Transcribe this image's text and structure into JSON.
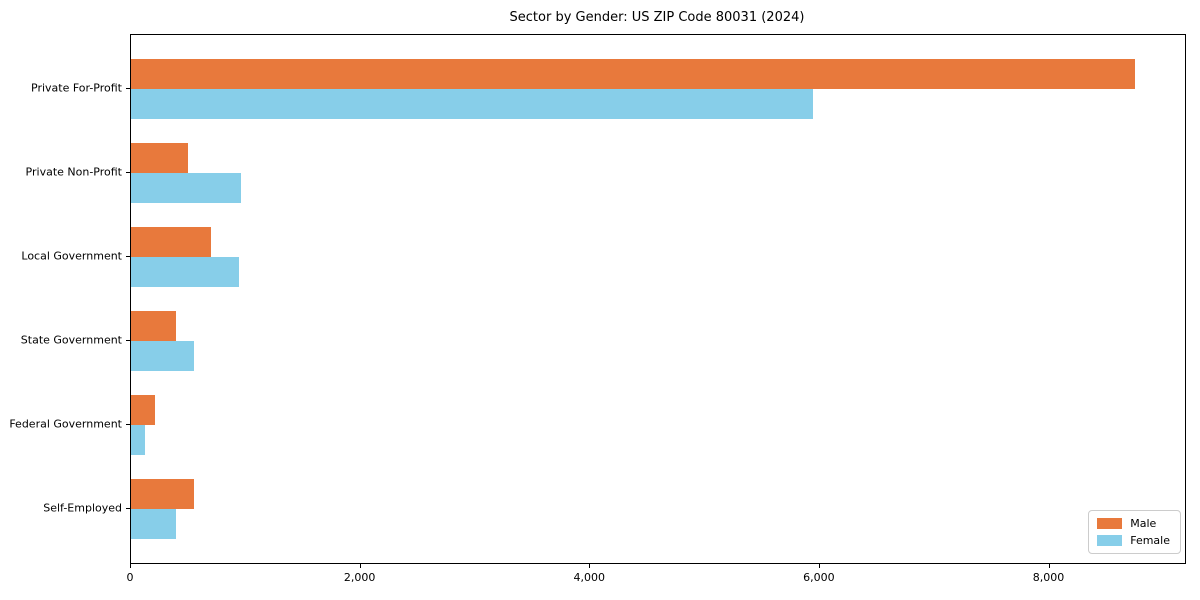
{
  "page": {
    "background": "#ffffff"
  },
  "chart_data": {
    "type": "bar",
    "orientation": "horizontal",
    "title": "Sector by Gender: US ZIP Code 80031 (2024)",
    "categories": [
      "Private For-Profit",
      "Private Non-Profit",
      "Local Government",
      "State Government",
      "Federal Government",
      "Self-Employed"
    ],
    "series": [
      {
        "name": "Male",
        "color": "#e8793c",
        "values": [
          8740,
          500,
          700,
          390,
          210,
          550
        ]
      },
      {
        "name": "Female",
        "color": "#87cee9",
        "values": [
          5940,
          960,
          940,
          550,
          125,
          390
        ]
      }
    ],
    "xlabel": "",
    "ylabel": "",
    "xlim": [
      0,
      9180
    ],
    "x_ticks": [
      {
        "value": 0,
        "label": "0"
      },
      {
        "value": 2000,
        "label": "2,000"
      },
      {
        "value": 4000,
        "label": "4,000"
      },
      {
        "value": 6000,
        "label": "6,000"
      },
      {
        "value": 8000,
        "label": "8,000"
      }
    ],
    "grid": false,
    "legend": {
      "position": "lower-right",
      "entries": [
        "Male",
        "Female"
      ]
    }
  }
}
